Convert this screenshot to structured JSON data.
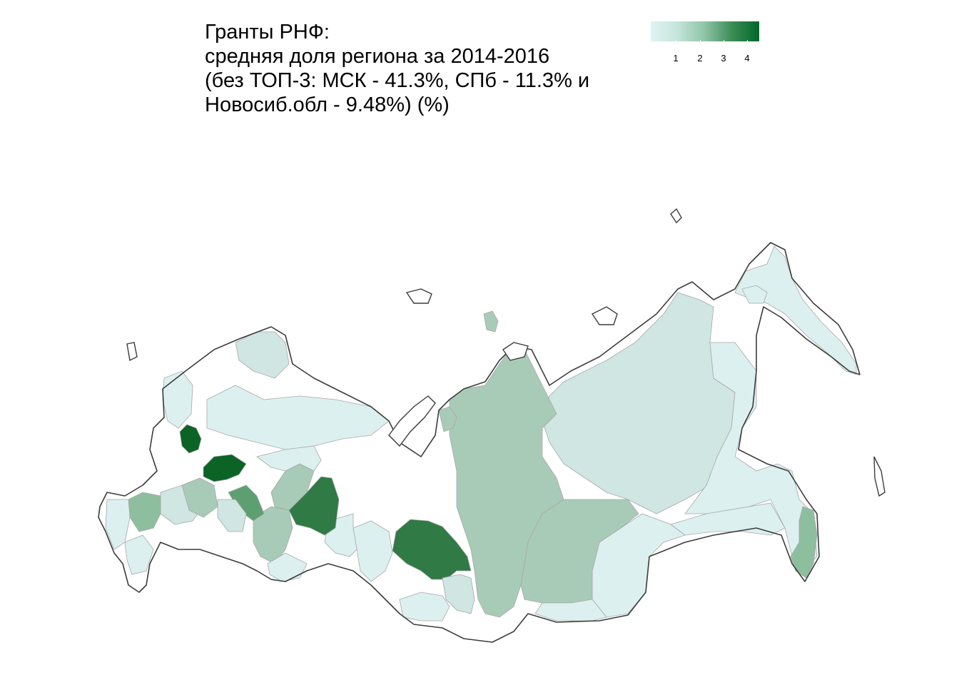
{
  "title": {
    "line1": "Гранты РНФ:",
    "line2": "средняя доля региона за 2014-2016",
    "line3": "(без ТОП-3: МСК - 41.3%, СПб - 11.3% и",
    "line4": "Новосиб.обл - 9.48%) (%)"
  },
  "legend": {
    "ticks": [
      "1",
      "2",
      "3",
      "4"
    ],
    "colors": [
      "#e0f3f3",
      "#c4e4da",
      "#8ec4a5",
      "#3d8c55",
      "#006828"
    ]
  },
  "colors": {
    "no_data": "#ffffff",
    "very_low": "#dcf0f0",
    "low": "#cfe6e2",
    "mid_low": "#a8cbb8",
    "mid": "#8dbf9f",
    "mid_high": "#5e9f72",
    "high": "#2f7a45",
    "very_high": "#0b6326",
    "outline": "#3c3c3c"
  }
}
